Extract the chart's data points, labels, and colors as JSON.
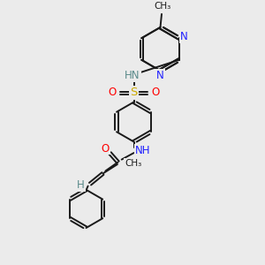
{
  "bg_color": "#ebebeb",
  "bond_color": "#1a1a1a",
  "N_color": "#2020ff",
  "O_color": "#ff0000",
  "S_color": "#ccaa00",
  "H_color": "#5a8a8a",
  "font_size": 8.5,
  "bond_width": 1.4,
  "double_sep": 0.055,
  "figsize": [
    3.0,
    3.0
  ],
  "dpi": 100,
  "xlim": [
    0,
    10
  ],
  "ylim": [
    0,
    10
  ]
}
